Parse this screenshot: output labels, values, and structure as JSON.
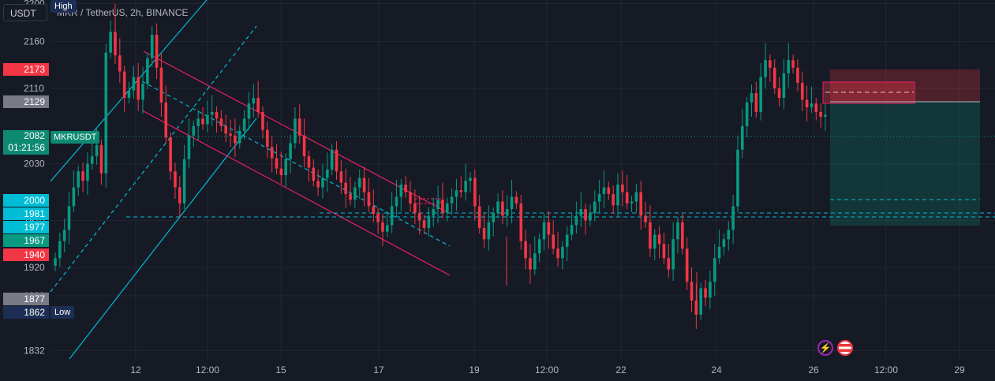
{
  "header": {
    "currency_button": "USDT",
    "symbol_title": "MKR / TetherUS, 2h, BINANCE",
    "high_label": "High",
    "low_label": "Low"
  },
  "price_badges": [
    {
      "value": "2173",
      "color": "#f23645"
    },
    {
      "value": "2129",
      "color": "#787b86"
    },
    {
      "value": "2000",
      "color": "#00bcd4"
    },
    {
      "value": "1981",
      "color": "#00bcd4"
    },
    {
      "value": "1977",
      "color": "#00bcd4"
    },
    {
      "value": "1967",
      "color": "#089981"
    },
    {
      "value": "1940",
      "color": "#f23645"
    },
    {
      "value": "1877",
      "color": "#787b86"
    },
    {
      "value": "1862",
      "color": "#1c2e54"
    }
  ],
  "last_price": {
    "value": "2082",
    "countdown": "01:21:56",
    "ticker": "MKRUSDT"
  },
  "colors": {
    "up": "#089981",
    "down": "#f23645",
    "channel": "#e91e63",
    "fib": "#00bcd4",
    "grid": "#232632"
  },
  "icons": [
    "lightning-icon",
    "us-flag-icon"
  ],
  "chart_data": {
    "type": "candlestick",
    "title": "MKR / TetherUS, 2h, BINANCE",
    "y_ticks": [
      1832,
      1890,
      1920,
      1970,
      2030,
      2110,
      2160,
      2200
    ],
    "x_ticks": [
      "12",
      "12:00",
      "15",
      "17",
      "19",
      "12:00",
      "22",
      "24",
      "26",
      "12:00",
      "29"
    ],
    "ylim": [
      1800,
      2250
    ],
    "grid": true,
    "high": 2250,
    "low": 1862,
    "closes": [
      1930,
      1948,
      1960,
      1985,
      2005,
      2022,
      2012,
      2030,
      2038,
      2050,
      2020,
      2148,
      2170,
      2145,
      2128,
      2100,
      2108,
      2122,
      2098,
      2115,
      2142,
      2167,
      2132,
      2095,
      2058,
      2022,
      2005,
      1988,
      2035,
      2060,
      2070,
      2078,
      2072,
      2082,
      2085,
      2078,
      2070,
      2062,
      2060,
      2052,
      2065,
      2078,
      2094,
      2100,
      2085,
      2066,
      2048,
      2036,
      2025,
      2018,
      2035,
      2052,
      2078,
      2060,
      2038,
      2026,
      2012,
      2005,
      2015,
      2024,
      2045,
      2022,
      2010,
      1998,
      1992,
      2005,
      2015,
      2000,
      1985,
      1977,
      1968,
      1958,
      1965,
      1985,
      1995,
      2008,
      2000,
      1988,
      1978,
      1970,
      1962,
      1975,
      1982,
      1992,
      1978,
      1988,
      1995,
      2002,
      2000,
      2012,
      2015,
      1985,
      1962,
      1950,
      1968,
      1978,
      1990,
      1975,
      1982,
      1995,
      1988,
      1948,
      1930,
      1918,
      1935,
      1950,
      1968,
      1955,
      1940,
      1930,
      1942,
      1955,
      1965,
      1975,
      1982,
      1970,
      1978,
      1990,
      1998,
      2005,
      1998,
      1986,
      2008,
      2000,
      1988,
      1990,
      2000,
      1975,
      1968,
      1940,
      1955,
      1945,
      1930,
      1918,
      1950,
      1968,
      1940,
      1905,
      1885,
      1870,
      1898,
      1888,
      1905,
      1930,
      1942,
      1950,
      1960,
      1985,
      2045,
      2070,
      2095,
      2105,
      2085,
      2122,
      2140,
      2132,
      2110,
      2100,
      2126,
      2140,
      2132,
      2116,
      2098,
      2090,
      2094,
      2085,
      2080,
      2082
    ]
  }
}
